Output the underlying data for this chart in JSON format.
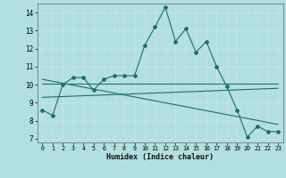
{
  "title": "",
  "xlabel": "Humidex (Indice chaleur)",
  "bg_color": "#b2dfdf",
  "grid_color": "#c8e8e8",
  "line_color": "#1a6e6e",
  "xlim": [
    -0.5,
    23.5
  ],
  "ylim": [
    6.8,
    14.5
  ],
  "xticks": [
    0,
    1,
    2,
    3,
    4,
    5,
    6,
    7,
    8,
    9,
    10,
    11,
    12,
    13,
    14,
    15,
    16,
    17,
    18,
    19,
    20,
    21,
    22,
    23
  ],
  "yticks": [
    7,
    8,
    9,
    10,
    11,
    12,
    13,
    14
  ],
  "main_x": [
    0,
    1,
    2,
    3,
    4,
    5,
    6,
    7,
    8,
    9,
    10,
    11,
    12,
    13,
    14,
    15,
    16,
    17,
    18,
    19,
    20,
    21,
    22,
    23
  ],
  "main_y": [
    8.6,
    8.3,
    10.0,
    10.4,
    10.4,
    9.7,
    10.3,
    10.5,
    10.5,
    10.5,
    12.2,
    13.2,
    14.3,
    12.4,
    13.1,
    11.8,
    12.4,
    11.0,
    9.9,
    8.6,
    7.1,
    7.7,
    7.4,
    7.4
  ],
  "trend1_x": [
    0,
    23
  ],
  "trend1_y": [
    10.05,
    10.05
  ],
  "trend2_x": [
    0,
    23
  ],
  "trend2_y": [
    10.3,
    7.8
  ],
  "trend3_x": [
    0,
    23
  ],
  "trend3_y": [
    9.3,
    9.8
  ]
}
